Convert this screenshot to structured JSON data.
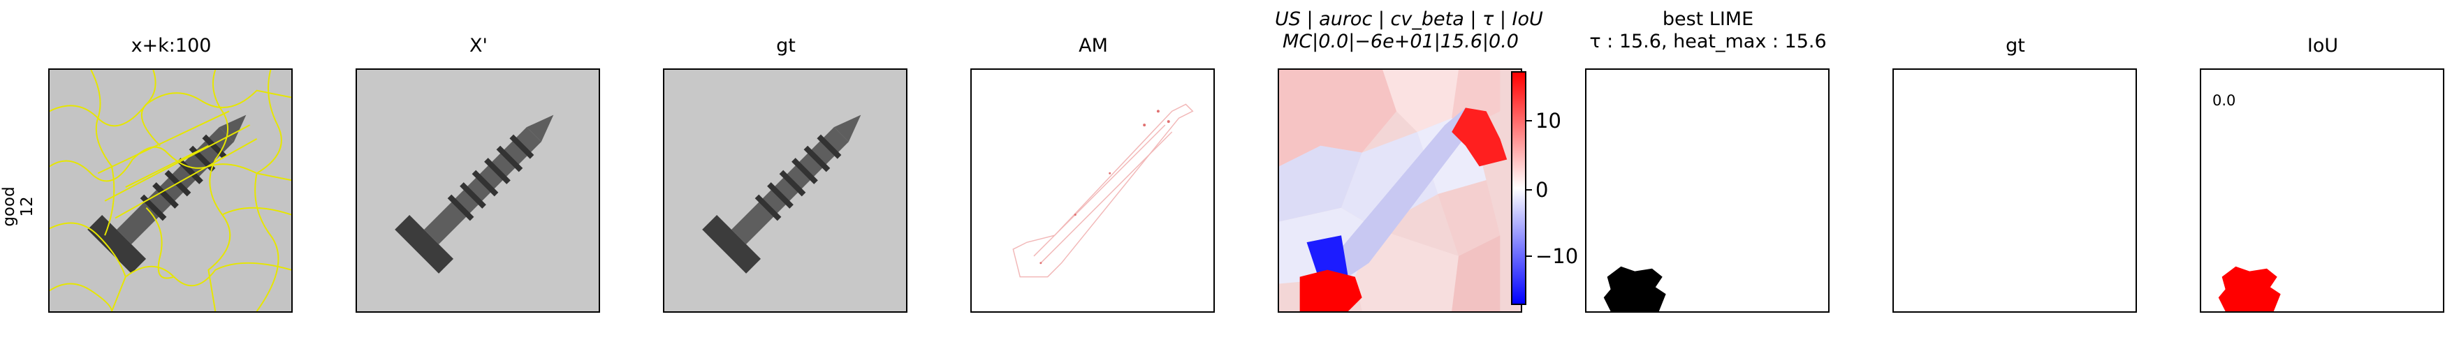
{
  "row_label": {
    "line1": "good",
    "line2": "12"
  },
  "panels": [
    {
      "title": "x+k:100"
    },
    {
      "title": "X'"
    },
    {
      "title": "gt"
    },
    {
      "title": "AM"
    },
    {
      "title_line1": "US | auroc | cv_beta | τ | IoU",
      "title_line2": "MC|0.0|−6e+01|15.6|0.0"
    },
    {
      "title_line1": "best LIME",
      "title_line2": "τ : 15.6, heat_max : 15.6"
    },
    {
      "title": "gt"
    },
    {
      "title": "IoU"
    }
  ],
  "colorbar": {
    "ticks": [
      "10",
      "0",
      "−10"
    ]
  },
  "iou_value": "0.0",
  "colors": {
    "superpixel_lines": "#e6e600",
    "mask_black": "#000000",
    "mask_red": "#ff0000",
    "positive": "#ff0000",
    "negative": "#0000ff"
  }
}
